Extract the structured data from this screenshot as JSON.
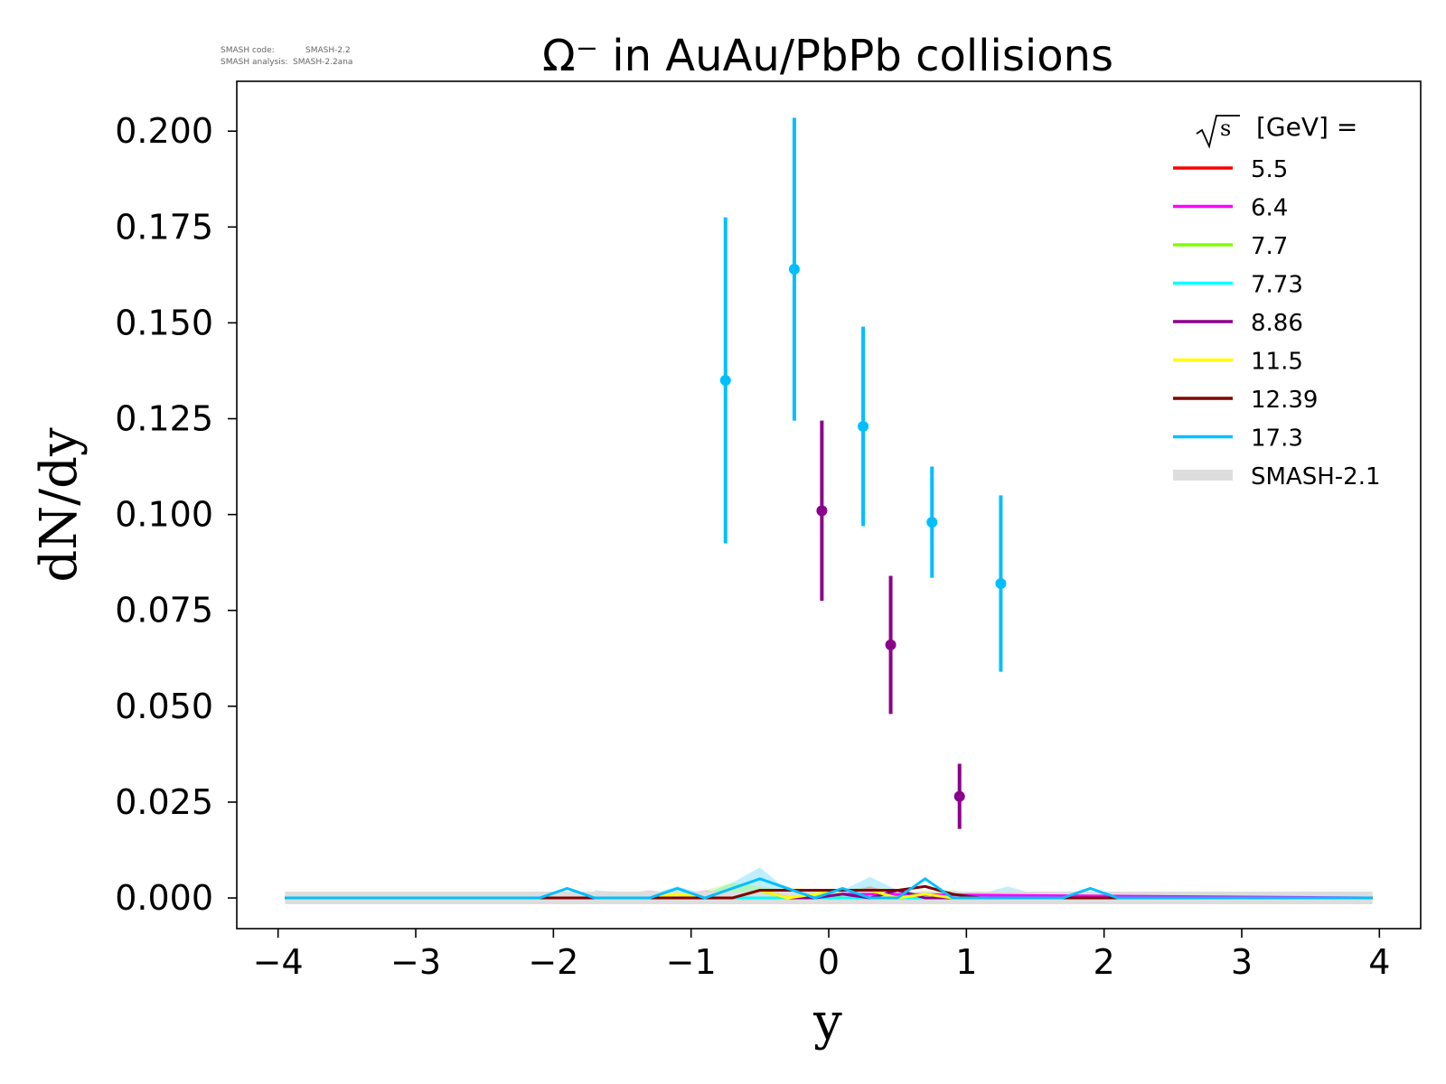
{
  "meta": {
    "code_label": "SMASH code:",
    "code_value": "SMASH-2.2",
    "analysis_label": "SMASH analysis:",
    "analysis_value": "SMASH-2.2ana"
  },
  "chart_data": {
    "type": "scatter",
    "title": "Ω⁻ in AuAu/PbPb collisions",
    "xlabel": "y",
    "ylabel": "dN/dy",
    "xlim": [
      -4.3,
      4.3
    ],
    "ylim": [
      -0.008,
      0.213
    ],
    "xticks": [
      -4,
      -3,
      -2,
      -1,
      0,
      1,
      2,
      3,
      4
    ],
    "xtick_labels": [
      "−4",
      "−3",
      "−2",
      "−1",
      "0",
      "1",
      "2",
      "3",
      "4"
    ],
    "yticks": [
      0.0,
      0.025,
      0.05,
      0.075,
      0.1,
      0.125,
      0.15,
      0.175,
      0.2
    ],
    "ytick_labels": [
      "0.000",
      "0.025",
      "0.050",
      "0.075",
      "0.100",
      "0.125",
      "0.150",
      "0.175",
      "0.200"
    ],
    "grid": false,
    "legend": {
      "title": "[GeV] =",
      "title_symbol": "√s",
      "placement": "top-right",
      "entries": [
        {
          "label": "5.5",
          "color": "#ff0000"
        },
        {
          "label": "6.4",
          "color": "#ff00ff"
        },
        {
          "label": "7.7",
          "color": "#7fff00"
        },
        {
          "label": "7.73",
          "color": "#00ffff"
        },
        {
          "label": "8.86",
          "color": "#8b008b"
        },
        {
          "label": "11.5",
          "color": "#ffff00"
        },
        {
          "label": "12.39",
          "color": "#800000"
        },
        {
          "label": "17.3",
          "color": "#00bfff"
        },
        {
          "label": "SMASH-2.1",
          "color": "#dddddd"
        }
      ]
    },
    "experimental_series": [
      {
        "color": "#00bfff",
        "points": [
          {
            "x": -0.75,
            "y": 0.135,
            "err": 0.0425
          },
          {
            "x": -0.25,
            "y": 0.164,
            "err": 0.0395
          },
          {
            "x": 0.25,
            "y": 0.123,
            "err": 0.026
          },
          {
            "x": 0.75,
            "y": 0.098,
            "err": 0.0145
          },
          {
            "x": 1.25,
            "y": 0.082,
            "err": 0.023
          }
        ]
      },
      {
        "color": "#8b008b",
        "points": [
          {
            "x": -0.05,
            "y": 0.101,
            "err": 0.0235
          },
          {
            "x": 0.45,
            "y": 0.066,
            "err": 0.018
          },
          {
            "x": 0.95,
            "y": 0.0265,
            "err": 0.0085
          }
        ]
      }
    ],
    "model_bands": [
      {
        "color": "#00bfff",
        "x": [
          -1.7,
          -1.5,
          -1.3,
          -1.1,
          -0.9,
          -0.7,
          -0.5,
          -0.3,
          -0.1,
          0.1,
          0.3,
          0.5,
          0.7,
          0.9,
          1.1,
          1.3,
          1.5
        ],
        "y": [
          0.002,
          0.0015,
          0.001,
          0.003,
          0.001,
          0.004,
          0.008,
          0.002,
          0.001,
          0.002,
          0.0055,
          0.002,
          0.001,
          0.002,
          0.001,
          0.003,
          0.001
        ]
      },
      {
        "color": "#ffff00",
        "x": [
          -0.9,
          -0.7,
          -0.5,
          -0.3,
          -0.1,
          0.1,
          0.3,
          0.5,
          0.7,
          0.9,
          1.1,
          1.3,
          1.5
        ],
        "y": [
          0.001,
          0.002,
          0.001,
          0.003,
          0.002,
          0.001,
          0.003,
          0.002,
          0.001,
          0.002,
          0.001,
          0.002,
          0.001
        ]
      },
      {
        "color": "#7fff00",
        "x": [
          -0.9,
          -0.7,
          -0.5,
          -0.3,
          -0.1,
          0.1,
          0.3,
          0.5,
          0.7,
          0.9
        ],
        "y": [
          0.002,
          0.004,
          0.003,
          0.002,
          0.001,
          0.002,
          0.003,
          0.001,
          0.002,
          0.001
        ]
      },
      {
        "color": "#ff00ff",
        "x": [
          -1.5,
          -1.3,
          -1.1,
          -0.9,
          -0.7,
          -0.5,
          -0.3,
          -0.1,
          0.1,
          0.3,
          0.5
        ],
        "y": [
          0.001,
          0.002,
          0.001,
          0.002,
          0.001,
          0.002,
          0.001,
          0.002,
          0.001,
          0.003,
          0.001
        ]
      }
    ],
    "model_lines": [
      {
        "color": "#dddddd",
        "width": 14,
        "x": [
          -3.95,
          3.95
        ],
        "y": [
          0.0,
          0.0
        ]
      },
      {
        "color": "#ff0000",
        "width": 3,
        "x": [
          -3.95,
          3.95
        ],
        "y": [
          0.0,
          0.0
        ]
      },
      {
        "color": "#ff00ff",
        "width": 3,
        "x": [
          -3.95,
          -0.1,
          0.1,
          3.95
        ],
        "y": [
          0.0,
          0.0,
          0.001,
          0.0
        ]
      },
      {
        "color": "#7fff00",
        "width": 3,
        "x": [
          -3.95,
          -0.3,
          -0.1,
          0.1,
          3.95
        ],
        "y": [
          0.0,
          0.0,
          0.001,
          0.0,
          0.0
        ]
      },
      {
        "color": "#00ffff",
        "width": 3,
        "x": [
          -3.95,
          3.95
        ],
        "y": [
          0.0,
          0.0
        ]
      },
      {
        "color": "#8b008b",
        "width": 3,
        "x": [
          -3.95,
          -0.7,
          -0.5,
          -0.3,
          -0.1,
          0.1,
          0.3,
          0.5,
          0.7,
          3.95
        ],
        "y": [
          0.0,
          0.0,
          0.002,
          0.0,
          0.0,
          0.001,
          0.0,
          0.002,
          0.0,
          0.0
        ]
      },
      {
        "color": "#ffff00",
        "width": 3,
        "x": [
          -3.95,
          -1.3,
          -1.1,
          -0.9,
          -0.7,
          -0.5,
          -0.3,
          -0.1,
          0.1,
          0.3,
          0.5,
          0.7,
          0.9,
          3.95
        ],
        "y": [
          0.0,
          0.0,
          0.001,
          0.0,
          0.0,
          0.002,
          0.0,
          0.001,
          0.002,
          0.002,
          0.0,
          0.001,
          0.0,
          0.0
        ]
      },
      {
        "color": "#800000",
        "width": 3,
        "x": [
          -3.95,
          -2.1,
          -1.9,
          -0.9,
          -0.7,
          -0.5,
          -0.3,
          0.5,
          0.7,
          0.9,
          1.1,
          3.95
        ],
        "y": [
          0.0,
          0.0,
          0.0,
          0.0,
          0.0,
          0.002,
          0.002,
          0.002,
          0.003,
          0.001,
          0.0,
          0.0
        ]
      },
      {
        "color": "#00bfff",
        "width": 3,
        "x": [
          -3.95,
          -2.1,
          -1.9,
          -1.7,
          -1.5,
          -1.3,
          -1.1,
          -0.9,
          -0.7,
          -0.5,
          -0.3,
          -0.1,
          0.1,
          0.3,
          0.5,
          0.7,
          0.9,
          1.1,
          1.3,
          1.5,
          1.7,
          1.9,
          2.1,
          3.95
        ],
        "y": [
          0.0,
          0.0,
          0.0025,
          0.0,
          0.0,
          0.0,
          0.0025,
          0.0,
          0.0025,
          0.005,
          0.0025,
          0.0,
          0.0025,
          0.0,
          0.0,
          0.005,
          0.0,
          0.0,
          0.0,
          0.0,
          0.0,
          0.0025,
          0.0,
          0.0
        ]
      }
    ]
  }
}
